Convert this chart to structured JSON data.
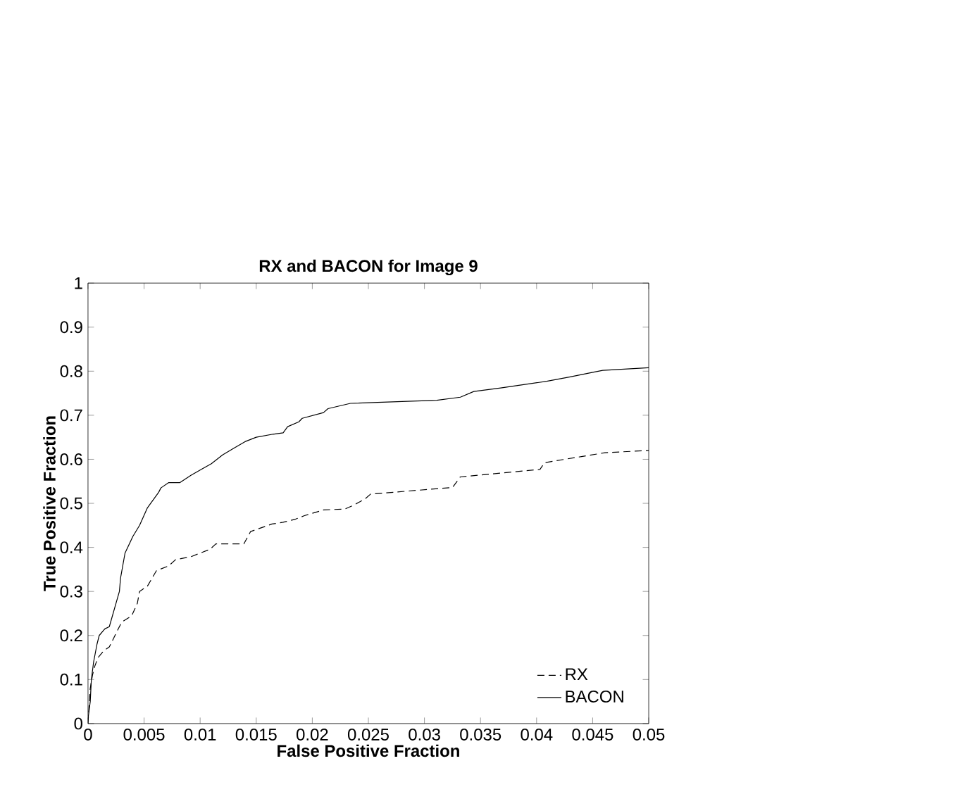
{
  "chart_data": {
    "type": "line",
    "title": "RX and BACON for Image 9",
    "xlabel": "False Positive Fraction",
    "ylabel": "True Positive Fraction",
    "xlim": [
      0,
      0.05
    ],
    "ylim": [
      0,
      1
    ],
    "xticks": [
      0,
      0.005,
      0.01,
      0.015,
      0.02,
      0.025,
      0.03,
      0.035,
      0.04,
      0.045,
      0.05
    ],
    "yticks": [
      0,
      0.1,
      0.2,
      0.3,
      0.4,
      0.5,
      0.6,
      0.7,
      0.8,
      0.9,
      1
    ],
    "legend": "bottom right",
    "grid": false,
    "marker": "none",
    "series": [
      {
        "name": "RX",
        "color": "#000000",
        "line_style": "dashed",
        "x": [
          0,
          0.0001,
          0.0002,
          0.0004,
          0.0006,
          0.0009,
          0.0014,
          0.0019,
          0.0026,
          0.003,
          0.0039,
          0.0044,
          0.0046,
          0.0053,
          0.0061,
          0.0072,
          0.0078,
          0.0092,
          0.01,
          0.0109,
          0.0114,
          0.0139,
          0.0145,
          0.0164,
          0.0174,
          0.0185,
          0.0193,
          0.021,
          0.0229,
          0.0237,
          0.0247,
          0.0252,
          0.0325,
          0.0332,
          0.0403,
          0.0407,
          0.0425,
          0.044,
          0.0461,
          0.05
        ],
        "values": [
          0,
          0.04,
          0.08,
          0.11,
          0.13,
          0.15,
          0.165,
          0.174,
          0.21,
          0.23,
          0.245,
          0.273,
          0.3,
          0.312,
          0.347,
          0.358,
          0.372,
          0.379,
          0.387,
          0.396,
          0.408,
          0.408,
          0.436,
          0.453,
          0.457,
          0.464,
          0.472,
          0.485,
          0.487,
          0.496,
          0.51,
          0.521,
          0.536,
          0.56,
          0.577,
          0.592,
          0.6,
          0.606,
          0.615,
          0.62
        ]
      },
      {
        "name": "BACON",
        "color": "#000000",
        "line_style": "solid",
        "x": [
          0,
          0.0002,
          0.0003,
          0.0005,
          0.0008,
          0.001,
          0.0015,
          0.0019,
          0.0028,
          0.0029,
          0.0033,
          0.004,
          0.0046,
          0.0053,
          0.0063,
          0.0065,
          0.0072,
          0.0082,
          0.0092,
          0.0103,
          0.011,
          0.012,
          0.013,
          0.014,
          0.015,
          0.0165,
          0.0174,
          0.0178,
          0.0188,
          0.0191,
          0.021,
          0.0214,
          0.0234,
          0.0311,
          0.0332,
          0.0344,
          0.0368,
          0.0382,
          0.0409,
          0.043,
          0.0451,
          0.0459,
          0.05
        ],
        "values": [
          0.01,
          0.05,
          0.1,
          0.14,
          0.18,
          0.2,
          0.215,
          0.22,
          0.3,
          0.33,
          0.387,
          0.425,
          0.45,
          0.49,
          0.525,
          0.535,
          0.547,
          0.547,
          0.564,
          0.58,
          0.59,
          0.61,
          0.625,
          0.64,
          0.65,
          0.657,
          0.66,
          0.674,
          0.685,
          0.693,
          0.706,
          0.715,
          0.727,
          0.734,
          0.741,
          0.754,
          0.762,
          0.767,
          0.777,
          0.787,
          0.798,
          0.802,
          0.808
        ]
      }
    ]
  }
}
